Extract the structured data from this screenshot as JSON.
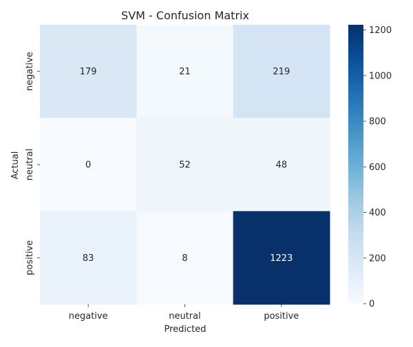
{
  "chart_data": {
    "type": "heatmap",
    "title": "SVM - Confusion Matrix",
    "xlabel": "Predicted",
    "ylabel": "Actual",
    "x_categories": [
      "negative",
      "neutral",
      "positive"
    ],
    "y_categories": [
      "negative",
      "neutral",
      "positive"
    ],
    "values": [
      [
        179,
        21,
        219
      ],
      [
        0,
        52,
        48
      ],
      [
        83,
        8,
        1223
      ]
    ],
    "colormap": "Blues",
    "color_range": [
      0,
      1223
    ],
    "colorbar_ticks": [
      "0",
      "200",
      "400",
      "600",
      "800",
      "1000",
      "1200"
    ],
    "colors": {
      "low": "#f7fbff",
      "high": "#08306b",
      "text_dark": "#262626",
      "text_light": "#ffffff"
    }
  }
}
